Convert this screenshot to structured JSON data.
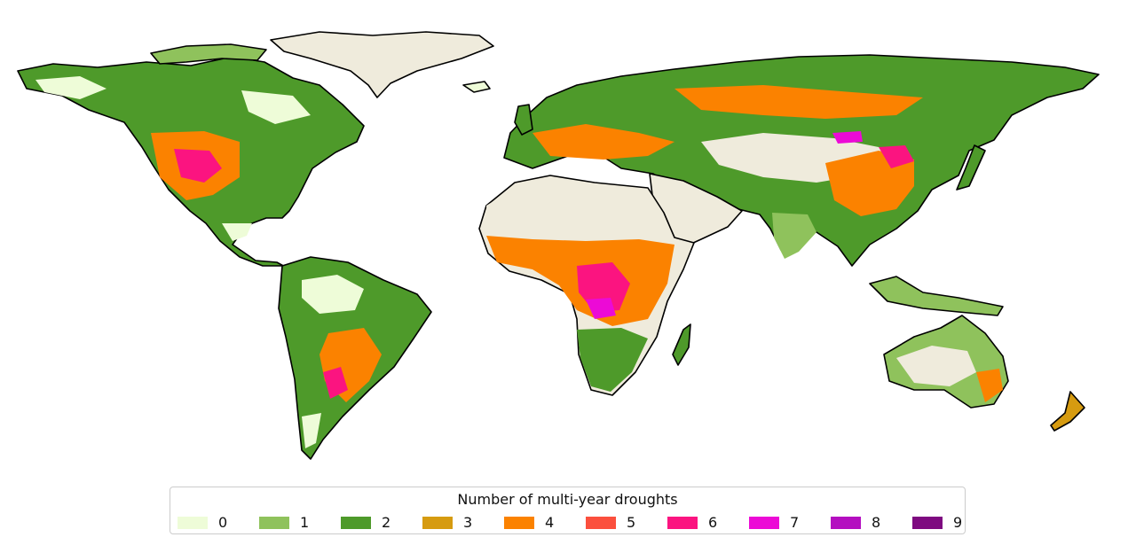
{
  "legend": {
    "title": "Number of multi-year droughts",
    "items": [
      {
        "label": "0",
        "color": "#eefcd8"
      },
      {
        "label": "1",
        "color": "#8fc25c"
      },
      {
        "label": "2",
        "color": "#4e9a2a"
      },
      {
        "label": "3",
        "color": "#d69b10"
      },
      {
        "label": "4",
        "color": "#fb8200"
      },
      {
        "label": "5",
        "color": "#fb4f3d"
      },
      {
        "label": "6",
        "color": "#fb1480"
      },
      {
        "label": "7",
        "color": "#ec0ad6"
      },
      {
        "label": "8",
        "color": "#b40ec0"
      },
      {
        "label": "9",
        "color": "#7e0a80"
      }
    ]
  },
  "map": {
    "no_data_color": "#efebdc",
    "coastline_color": "#000000"
  }
}
